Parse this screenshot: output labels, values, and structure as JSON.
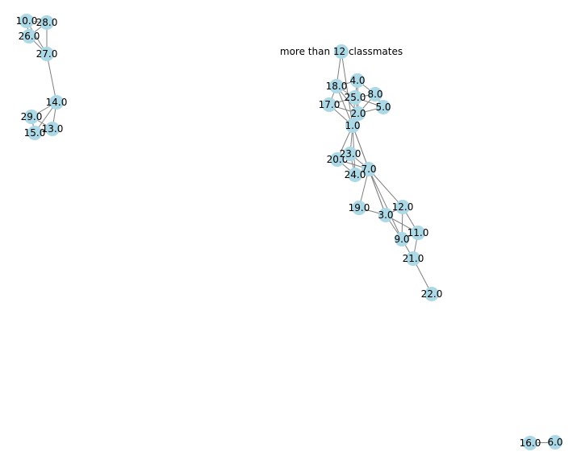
{
  "colors": {
    "node": "#add8e6",
    "edge": "#808080",
    "label": "#000000",
    "background": "#ffffff"
  },
  "nodes": [
    {
      "id": "more than 12 classmates",
      "label": "more than 12 classmates"
    },
    {
      "id": "1.0",
      "label": "1.0"
    },
    {
      "id": "2.0",
      "label": "2.0"
    },
    {
      "id": "3.0",
      "label": "3.0"
    },
    {
      "id": "4.0",
      "label": "4.0"
    },
    {
      "id": "5.0",
      "label": "5.0"
    },
    {
      "id": "6.0",
      "label": "6.0"
    },
    {
      "id": "7.0",
      "label": "7.0"
    },
    {
      "id": "8.0",
      "label": "8.0"
    },
    {
      "id": "9.0",
      "label": "9.0"
    },
    {
      "id": "10.0",
      "label": "10.0"
    },
    {
      "id": "11.0",
      "label": "11.0"
    },
    {
      "id": "12.0",
      "label": "12.0"
    },
    {
      "id": "13.0",
      "label": "13.0"
    },
    {
      "id": "14.0",
      "label": "14.0"
    },
    {
      "id": "15.0",
      "label": "15.0"
    },
    {
      "id": "16.0",
      "label": "16.0"
    },
    {
      "id": "17.0",
      "label": "17.0"
    },
    {
      "id": "18.0",
      "label": "18.0"
    },
    {
      "id": "19.0",
      "label": "19.0"
    },
    {
      "id": "20.0",
      "label": "20.0"
    },
    {
      "id": "21.0",
      "label": "21.0"
    },
    {
      "id": "22.0",
      "label": "22.0"
    },
    {
      "id": "23.0",
      "label": "23.0"
    },
    {
      "id": "24.0",
      "label": "24.0"
    },
    {
      "id": "25.0",
      "label": "25.0"
    },
    {
      "id": "26.0",
      "label": "26.0"
    },
    {
      "id": "27.0",
      "label": "27.0"
    },
    {
      "id": "28.0",
      "label": "28.0"
    },
    {
      "id": "29.0",
      "label": "29.0"
    }
  ],
  "edges": [
    [
      "10.0",
      "28.0"
    ],
    [
      "10.0",
      "26.0"
    ],
    [
      "10.0",
      "27.0"
    ],
    [
      "28.0",
      "26.0"
    ],
    [
      "28.0",
      "27.0"
    ],
    [
      "26.0",
      "27.0"
    ],
    [
      "27.0",
      "14.0"
    ],
    [
      "14.0",
      "29.0"
    ],
    [
      "14.0",
      "15.0"
    ],
    [
      "14.0",
      "13.0"
    ],
    [
      "29.0",
      "15.0"
    ],
    [
      "29.0",
      "13.0"
    ],
    [
      "15.0",
      "13.0"
    ],
    [
      "more than 12 classmates",
      "18.0"
    ],
    [
      "more than 12 classmates",
      "1.0"
    ],
    [
      "18.0",
      "4.0"
    ],
    [
      "18.0",
      "17.0"
    ],
    [
      "18.0",
      "25.0"
    ],
    [
      "18.0",
      "2.0"
    ],
    [
      "18.0",
      "1.0"
    ],
    [
      "4.0",
      "25.0"
    ],
    [
      "4.0",
      "8.0"
    ],
    [
      "4.0",
      "2.0"
    ],
    [
      "25.0",
      "8.0"
    ],
    [
      "25.0",
      "2.0"
    ],
    [
      "25.0",
      "5.0"
    ],
    [
      "25.0",
      "17.0"
    ],
    [
      "25.0",
      "1.0"
    ],
    [
      "8.0",
      "2.0"
    ],
    [
      "8.0",
      "5.0"
    ],
    [
      "17.0",
      "2.0"
    ],
    [
      "17.0",
      "1.0"
    ],
    [
      "2.0",
      "5.0"
    ],
    [
      "2.0",
      "1.0"
    ],
    [
      "1.0",
      "23.0"
    ],
    [
      "1.0",
      "20.0"
    ],
    [
      "1.0",
      "24.0"
    ],
    [
      "1.0",
      "7.0"
    ],
    [
      "1.0",
      "3.0"
    ],
    [
      "23.0",
      "20.0"
    ],
    [
      "23.0",
      "24.0"
    ],
    [
      "23.0",
      "7.0"
    ],
    [
      "20.0",
      "24.0"
    ],
    [
      "20.0",
      "7.0"
    ],
    [
      "24.0",
      "7.0"
    ],
    [
      "7.0",
      "19.0"
    ],
    [
      "7.0",
      "12.0"
    ],
    [
      "7.0",
      "3.0"
    ],
    [
      "7.0",
      "9.0"
    ],
    [
      "19.0",
      "3.0"
    ],
    [
      "12.0",
      "3.0"
    ],
    [
      "12.0",
      "9.0"
    ],
    [
      "12.0",
      "11.0"
    ],
    [
      "3.0",
      "11.0"
    ],
    [
      "3.0",
      "9.0"
    ],
    [
      "9.0",
      "11.0"
    ],
    [
      "9.0",
      "21.0"
    ],
    [
      "11.0",
      "21.0"
    ],
    [
      "21.0",
      "22.0"
    ],
    [
      "16.0",
      "6.0"
    ]
  ]
}
